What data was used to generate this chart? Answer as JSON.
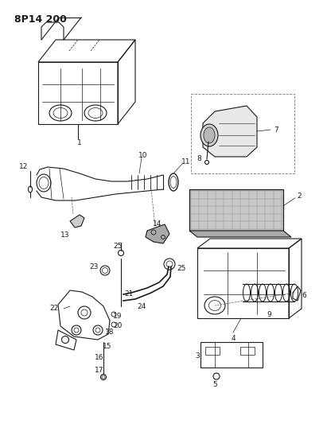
{
  "title": "8P14 200",
  "bg_color": "#ffffff",
  "line_color": "#1a1a1a",
  "title_fontsize": 9,
  "label_fontsize": 6.5,
  "fig_width": 4.11,
  "fig_height": 5.33,
  "dpi": 100
}
